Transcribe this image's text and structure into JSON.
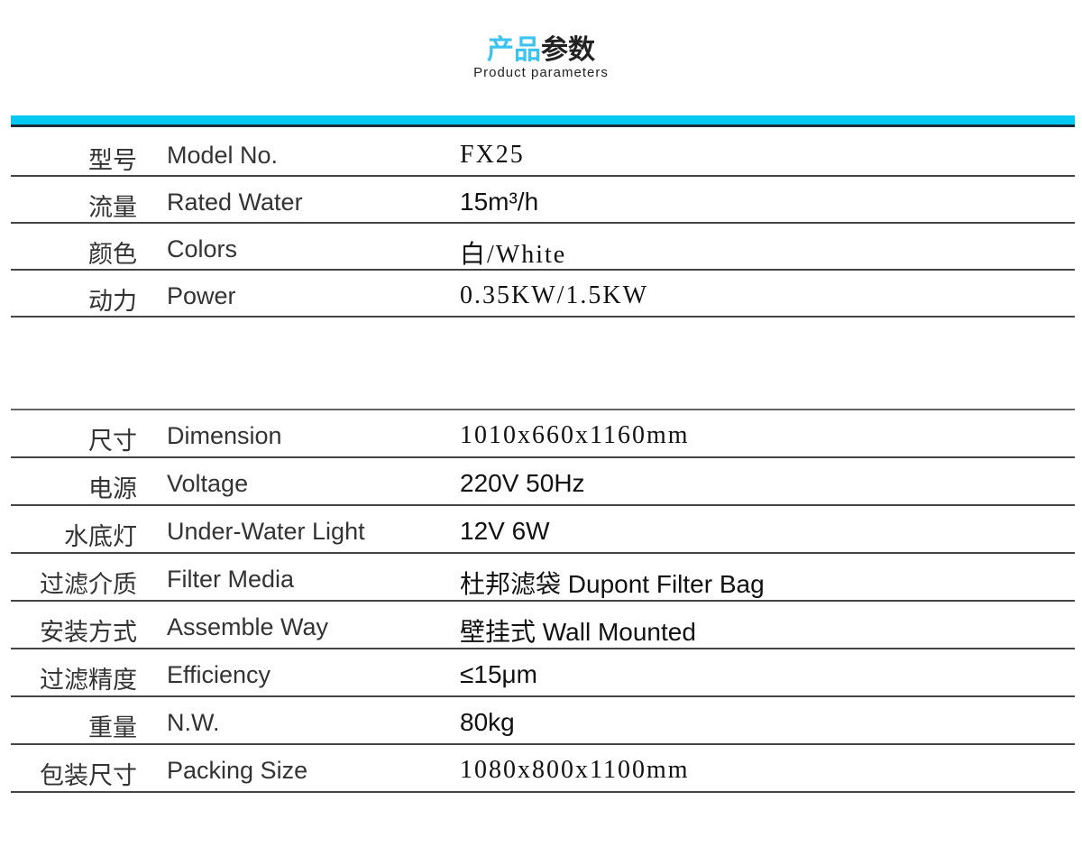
{
  "header": {
    "title_part1": "产品",
    "title_part2": "参数",
    "subtitle": "Product parameters"
  },
  "colors": {
    "accent": "#00c8f0",
    "title_accent": "#3cc4ee"
  },
  "table1": [
    {
      "cn": "型号",
      "en": "Model No.",
      "value": "FX25",
      "serif": true
    },
    {
      "cn": "流量",
      "en": "Rated Water",
      "value": "15m³/h",
      "serif": false
    },
    {
      "cn": "颜色",
      "en": "Colors",
      "value": "白/White",
      "serif": true
    },
    {
      "cn": "动力",
      "en": "Power",
      "value": "0.35KW/1.5KW",
      "serif": true
    }
  ],
  "table2": [
    {
      "cn": "尺寸",
      "en": "Dimension",
      "value": "1010x660x1160mm",
      "serif": true
    },
    {
      "cn": "电源",
      "en": "Voltage",
      "value": "220V 50Hz",
      "serif": false
    },
    {
      "cn": "水底灯",
      "en": "Under-Water Light",
      "value": "12V 6W",
      "serif": false
    },
    {
      "cn": "过滤介质",
      "en": "Filter Media",
      "value": "杜邦滤袋 Dupont Filter Bag",
      "serif": false
    },
    {
      "cn": "安装方式",
      "en": "Assemble Way",
      "value": "壁挂式 Wall Mounted",
      "serif": false
    },
    {
      "cn": "过滤精度",
      "en": "Efficiency",
      "value": "≤15μm",
      "serif": false
    },
    {
      "cn": "重量",
      "en": "N.W.",
      "value": "80kg",
      "serif": false
    },
    {
      "cn": "包装尺寸",
      "en": "Packing Size",
      "value": "1080x800x1100mm",
      "serif": true
    }
  ]
}
